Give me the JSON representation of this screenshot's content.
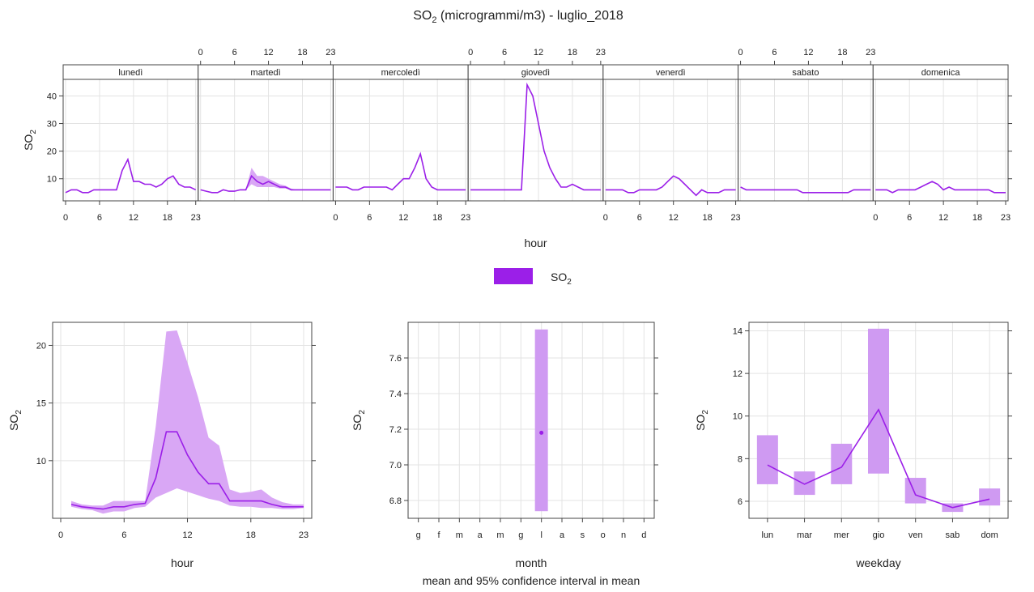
{
  "title": {
    "main": "SO",
    "sub": "2",
    "rest": " (microgrammi/m3) - luglio_2018"
  },
  "colors": {
    "line": "#9b1fe8",
    "band": "#d9a7f5",
    "bar": "#cf9af2",
    "point": "#9b1fe8"
  },
  "legend": {
    "label_main": "SO",
    "label_sub": "2"
  },
  "chart_data": [
    {
      "type": "line",
      "name": "hour-by-weekday",
      "xlabel": "hour",
      "ylabel_main": "SO",
      "ylabel_sub": "2",
      "ylim": [
        2,
        46
      ],
      "yticks": [
        10,
        20,
        30,
        40
      ],
      "xticks": [
        0,
        6,
        12,
        18,
        23
      ],
      "x": [
        0,
        1,
        2,
        3,
        4,
        5,
        6,
        7,
        8,
        9,
        10,
        11,
        12,
        13,
        14,
        15,
        16,
        17,
        18,
        19,
        20,
        21,
        22,
        23
      ],
      "panels": [
        {
          "label": "lunedì",
          "mean": [
            5,
            6,
            6,
            5,
            5,
            6,
            6,
            6,
            6,
            6,
            13,
            17,
            9,
            9,
            8,
            8,
            7,
            8,
            10,
            11,
            8,
            7,
            7,
            6
          ],
          "lower": [
            5,
            6,
            6,
            5,
            5,
            6,
            6,
            6,
            6,
            6,
            13,
            17,
            9,
            9,
            8,
            8,
            7,
            8,
            10,
            11,
            8,
            7,
            7,
            6
          ],
          "upper": [
            5,
            6,
            6,
            5,
            5,
            6,
            6,
            6,
            6,
            6,
            13,
            17,
            9,
            9,
            8,
            8,
            7,
            8,
            10,
            11,
            8,
            7,
            7,
            6
          ]
        },
        {
          "label": "martedì",
          "mean": [
            6,
            5.5,
            5,
            5,
            6,
            5.5,
            5.5,
            6,
            6,
            11,
            9,
            8,
            9,
            8,
            7,
            7,
            6,
            6,
            6,
            6,
            6,
            6,
            6,
            6
          ],
          "lower": [
            6,
            5.5,
            5,
            5,
            6,
            5.5,
            5.5,
            6,
            6,
            8,
            7,
            7,
            7,
            7,
            6.5,
            6.5,
            6,
            6,
            6,
            6,
            6,
            6,
            6,
            6
          ],
          "upper": [
            6,
            5.5,
            5,
            5,
            6,
            5.5,
            5.5,
            6,
            6,
            14,
            11,
            11,
            10,
            9,
            8,
            7.5,
            6.5,
            6,
            6,
            6,
            6,
            6,
            6,
            6
          ]
        },
        {
          "label": "mercoledì",
          "mean": [
            7,
            7,
            7,
            6,
            6,
            7,
            7,
            7,
            7,
            7,
            6,
            8,
            10,
            10,
            14,
            19,
            10,
            7,
            6,
            6,
            6,
            6,
            6,
            6
          ],
          "lower": [
            7,
            7,
            7,
            6,
            6,
            7,
            7,
            7,
            7,
            7,
            6,
            8,
            10,
            10,
            14,
            19,
            10,
            7,
            6,
            6,
            6,
            6,
            6,
            6
          ],
          "upper": [
            7,
            7,
            7,
            6,
            6,
            7,
            7,
            7,
            7,
            7,
            6,
            8,
            10,
            10,
            14,
            19,
            10,
            7,
            6,
            6,
            6,
            6,
            6,
            6
          ]
        },
        {
          "label": "giovedì",
          "mean": [
            6,
            6,
            6,
            6,
            6,
            6,
            6,
            6,
            6,
            6,
            44,
            40,
            30,
            20,
            14,
            10,
            7,
            7,
            8,
            7,
            6,
            6,
            6,
            6
          ],
          "lower": [
            6,
            6,
            6,
            6,
            6,
            6,
            6,
            6,
            6,
            6,
            44,
            40,
            30,
            20,
            14,
            10,
            7,
            7,
            8,
            7,
            6,
            6,
            6,
            6
          ],
          "upper": [
            6,
            6,
            6,
            6,
            6,
            6,
            6,
            6,
            6,
            6,
            44,
            40,
            30,
            20,
            14,
            10,
            7,
            7,
            8,
            7,
            6,
            6,
            6,
            6
          ]
        },
        {
          "label": "venerdì",
          "mean": [
            6,
            6,
            6,
            6,
            5,
            5,
            6,
            6,
            6,
            6,
            7,
            9,
            11,
            10,
            8,
            6,
            4,
            6,
            5,
            5,
            5,
            6,
            6,
            6
          ],
          "lower": [
            6,
            6,
            6,
            6,
            5,
            5,
            6,
            6,
            6,
            6,
            7,
            9,
            11,
            10,
            8,
            6,
            4,
            6,
            5,
            5,
            5,
            6,
            6,
            6
          ],
          "upper": [
            6,
            6,
            6,
            6,
            5,
            5,
            6,
            6,
            6,
            6,
            7,
            9,
            11,
            10,
            8,
            6,
            4,
            6,
            5,
            5,
            5,
            6,
            6,
            6
          ]
        },
        {
          "label": "sabato",
          "mean": [
            7,
            6,
            6,
            6,
            6,
            6,
            6,
            6,
            6,
            6,
            6,
            5,
            5,
            5,
            5,
            5,
            5,
            5,
            5,
            5,
            6,
            6,
            6,
            6
          ],
          "lower": [
            7,
            6,
            6,
            6,
            6,
            6,
            6,
            6,
            6,
            6,
            6,
            5,
            5,
            5,
            5,
            5,
            5,
            5,
            5,
            5,
            6,
            6,
            6,
            6
          ],
          "upper": [
            7,
            6,
            6,
            6,
            6,
            6,
            6,
            6,
            6,
            6,
            6,
            5,
            5,
            5,
            5,
            5,
            5,
            5,
            5,
            5,
            6,
            6,
            6,
            6
          ]
        },
        {
          "label": "domenica",
          "mean": [
            6,
            6,
            6,
            5,
            6,
            6,
            6,
            6,
            7,
            8,
            9,
            8,
            6,
            7,
            6,
            6,
            6,
            6,
            6,
            6,
            6,
            5,
            5,
            5
          ],
          "lower": [
            6,
            6,
            6,
            5,
            6,
            6,
            6,
            6,
            7,
            8,
            9,
            8,
            6,
            7,
            6,
            6,
            6,
            6,
            6,
            6,
            6,
            5,
            5,
            5
          ],
          "upper": [
            6,
            6,
            6,
            5,
            6,
            6,
            6,
            6,
            7,
            8,
            9,
            8,
            6,
            7,
            6,
            6,
            6,
            6,
            6,
            6,
            6,
            5,
            5,
            5
          ]
        }
      ]
    },
    {
      "type": "line",
      "name": "hour",
      "xlabel": "hour",
      "ylabel_main": "SO",
      "ylabel_sub": "2",
      "ylim": [
        5,
        22
      ],
      "yticks": [
        10,
        15,
        20
      ],
      "xticks": [
        0,
        6,
        12,
        18,
        23
      ],
      "x": [
        1,
        2,
        3,
        4,
        5,
        6,
        7,
        8,
        9,
        10,
        11,
        12,
        13,
        14,
        15,
        16,
        17,
        18,
        19,
        20,
        21,
        22,
        23
      ],
      "mean": [
        6.2,
        6.0,
        5.9,
        5.8,
        6.0,
        6.0,
        6.2,
        6.3,
        8.5,
        12.5,
        12.5,
        10.5,
        9.0,
        8.0,
        8.0,
        6.5,
        6.5,
        6.5,
        6.5,
        6.2,
        6.0,
        6.0,
        6.0
      ],
      "lower": [
        6.0,
        5.8,
        5.7,
        5.4,
        5.6,
        5.6,
        5.9,
        6.0,
        6.8,
        7.2,
        7.6,
        7.3,
        7.0,
        6.7,
        6.5,
        6.1,
        6.0,
        6.0,
        5.9,
        5.9,
        5.8,
        5.8,
        5.9
      ],
      "upper": [
        6.5,
        6.2,
        6.1,
        6.1,
        6.5,
        6.5,
        6.5,
        6.5,
        13.0,
        21.2,
        21.3,
        18.5,
        15.5,
        12.0,
        11.3,
        7.5,
        7.2,
        7.3,
        7.5,
        6.8,
        6.4,
        6.2,
        6.2
      ]
    },
    {
      "type": "bar",
      "name": "month",
      "xlabel": "month",
      "ylabel_main": "SO",
      "ylabel_sub": "2",
      "ylim": [
        6.7,
        7.8
      ],
      "yticks": [
        6.8,
        7.0,
        7.2,
        7.4,
        7.6
      ],
      "categories": [
        "g",
        "f",
        "m",
        "a",
        "m",
        "g",
        "l",
        "a",
        "s",
        "o",
        "n",
        "d"
      ],
      "highlight_index": 6,
      "mean": 7.18,
      "lower": 6.74,
      "upper": 7.76,
      "caption": "mean and 95% confidence interval in mean"
    },
    {
      "type": "line",
      "name": "weekday",
      "xlabel": "weekday",
      "ylabel_main": "SO",
      "ylabel_sub": "2",
      "ylim": [
        5.2,
        14.4
      ],
      "yticks": [
        6,
        8,
        10,
        12,
        14
      ],
      "categories": [
        "lun",
        "mar",
        "mer",
        "gio",
        "ven",
        "sab",
        "dom"
      ],
      "mean": [
        7.7,
        6.8,
        7.6,
        10.3,
        6.3,
        5.7,
        6.1
      ],
      "lower": [
        6.8,
        6.3,
        6.8,
        7.3,
        5.9,
        5.5,
        5.8
      ],
      "upper": [
        9.1,
        7.4,
        8.7,
        14.1,
        7.1,
        5.9,
        6.6
      ]
    }
  ]
}
